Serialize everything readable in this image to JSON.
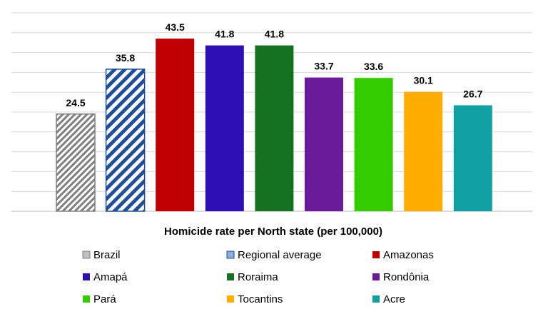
{
  "chart_data": {
    "type": "bar",
    "title": "",
    "xlabel": "Homicide rate per North state (per 100,000)",
    "ylabel": "",
    "ylim": [
      0,
      50
    ],
    "grid": true,
    "legend_position": "bottom",
    "categories": [
      "Brazil",
      "Regional average",
      "Amazonas",
      "Amapá",
      "Roraima",
      "Rondônia",
      "Pará",
      "Tocantins",
      "Acre"
    ],
    "values": [
      24.5,
      35.8,
      43.5,
      41.8,
      41.8,
      33.7,
      33.6,
      30.1,
      26.7
    ],
    "colors": [
      "#808080",
      "#1f4e9c",
      "#c00000",
      "#2e0fb5",
      "#13731e",
      "#6a1b9a",
      "#33cc00",
      "#ffad00",
      "#109fa3"
    ],
    "patterns": [
      "gray-diagonal-stripes",
      "blue-diagonal-stripes",
      "solid",
      "solid",
      "solid",
      "solid",
      "solid",
      "solid",
      "solid"
    ]
  }
}
